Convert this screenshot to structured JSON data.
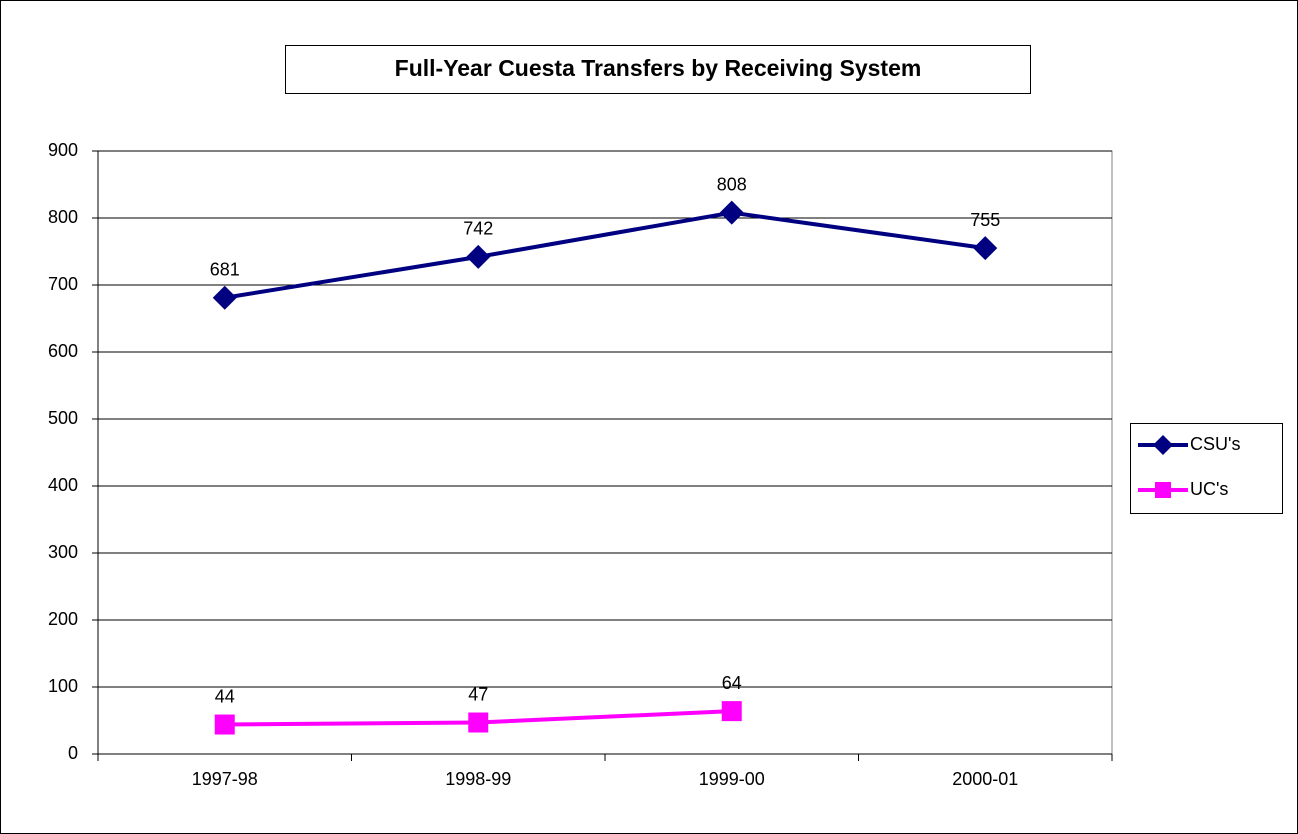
{
  "chart_data": {
    "type": "line",
    "title": "Full-Year Cuesta Transfers by Receiving System",
    "categories": [
      "1997-98",
      "1998-99",
      "1999-00",
      "2000-01"
    ],
    "series": [
      {
        "name": "CSU's",
        "color": "#000080",
        "marker": "diamond",
        "values": [
          681,
          742,
          808,
          755
        ]
      },
      {
        "name": "UC's",
        "color": "#ff00ff",
        "marker": "square",
        "values": [
          44,
          47,
          64,
          null
        ]
      }
    ],
    "ylim": [
      0,
      900
    ],
    "yticks": [
      0,
      100,
      200,
      300,
      400,
      500,
      600,
      700,
      800,
      900
    ],
    "grid": true,
    "legend": "right"
  }
}
